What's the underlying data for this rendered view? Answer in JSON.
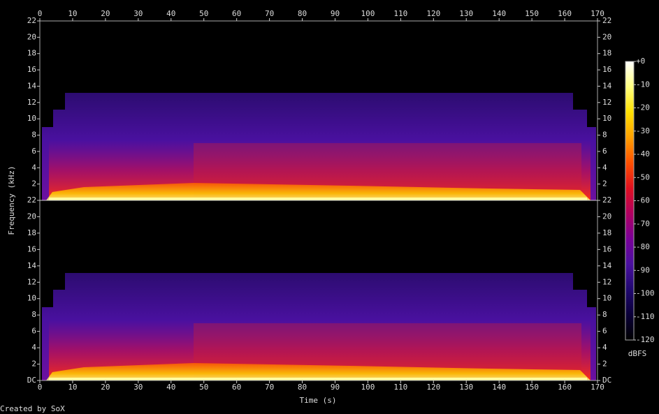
{
  "chart_data": {
    "type": "spectrogram",
    "x_label": "Time (s)",
    "y_label": "Frequency (kHz)",
    "footer": "Created by SoX",
    "xlim": [
      0,
      170
    ],
    "xticks": [
      0,
      10,
      20,
      30,
      40,
      50,
      60,
      70,
      80,
      90,
      100,
      110,
      120,
      130,
      140,
      150,
      160,
      170
    ],
    "ylim": [
      0,
      22
    ],
    "panels": [
      {
        "yticks": [
          2,
          4,
          6,
          8,
          10,
          12,
          14,
          16,
          18,
          20,
          22
        ]
      },
      {
        "yticks": [
          {
            "value": 0,
            "label": "DC"
          },
          2,
          4,
          6,
          8,
          10,
          12,
          14,
          16,
          18,
          20,
          22
        ]
      }
    ],
    "colorbar": {
      "label": "dBFS",
      "lim": [
        -120,
        0
      ],
      "ticks": [
        {
          "value": 0,
          "label": "+0"
        },
        -10,
        -20,
        -30,
        -40,
        -50,
        -60,
        -70,
        -80,
        -90,
        -100,
        -110,
        -120
      ],
      "colors": [
        "#ffffff",
        "#ffff80",
        "#ffe000",
        "#ffa000",
        "#ff5000",
        "#e01020",
        "#b00060",
        "#7a0098",
        "#4a10a0",
        "#200870",
        "#0a0038",
        "#000000"
      ]
    }
  }
}
